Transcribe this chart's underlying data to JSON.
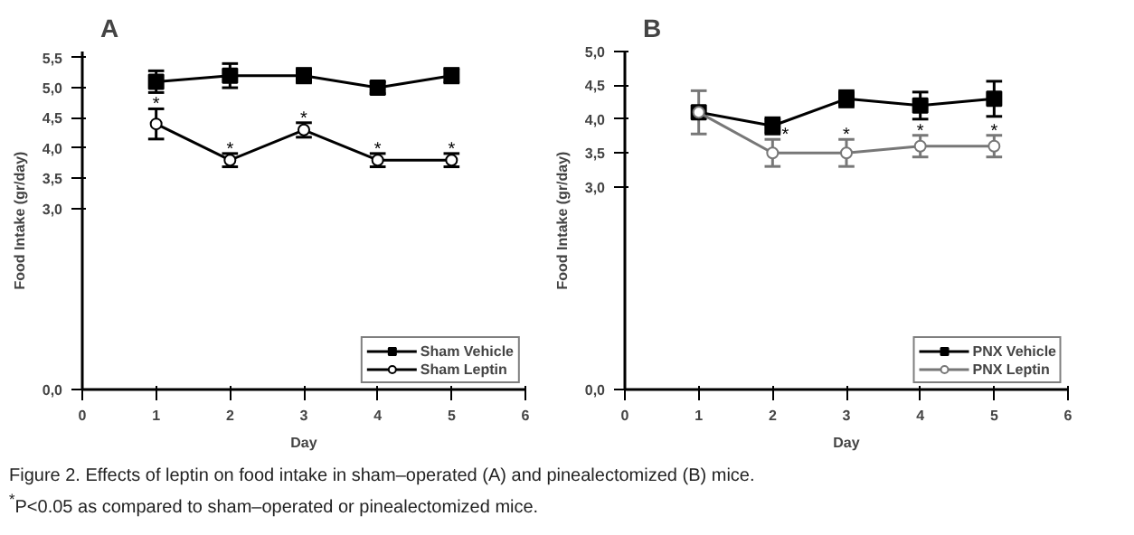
{
  "chart_data": [
    {
      "type": "line",
      "title": "A",
      "xlabel": "Day",
      "ylabel": "Food Intake (gr/day)",
      "x": [
        1,
        2,
        3,
        4,
        5
      ],
      "xlim": [
        0,
        6
      ],
      "xticks": [
        0,
        1,
        2,
        3,
        4,
        5,
        6
      ],
      "ylim": [
        0,
        5.6
      ],
      "yticks": [
        {
          "value": 0,
          "label": "0,0"
        },
        {
          "value": 3,
          "label": "3,0"
        },
        {
          "value": 3.5,
          "label": "3,5"
        },
        {
          "value": 4,
          "label": "4,0"
        },
        {
          "value": 4.5,
          "label": "4,5"
        },
        {
          "value": 5,
          "label": "5,0"
        },
        {
          "value": 5.5,
          "label": "5,5"
        }
      ],
      "legend": "bottom right",
      "grid": false,
      "series": [
        {
          "name": "Sham Vehicle",
          "color": "#000000",
          "marker": "square",
          "values": [
            5.1,
            5.2,
            5.2,
            5.0,
            5.2
          ],
          "errors": [
            0.18,
            0.2,
            0.12,
            0.1,
            0.12
          ]
        },
        {
          "name": "Sham Leptin",
          "color": "#000000",
          "marker": "circle",
          "values": [
            4.4,
            3.8,
            4.3,
            3.8,
            3.8
          ],
          "errors": [
            0.25,
            0.11,
            0.12,
            0.11,
            0.11
          ]
        }
      ],
      "annotations": [
        {
          "text": "*",
          "x": 1,
          "y": 4.65
        },
        {
          "text": "*",
          "x": 2,
          "y": 3.91
        },
        {
          "text": "*",
          "x": 3,
          "y": 4.42
        },
        {
          "text": "*",
          "x": 4,
          "y": 3.91
        },
        {
          "text": "*",
          "x": 5,
          "y": 3.91
        },
        "Figure 2. Effects of leptin on food intake in sham–operated (A) and pinealectomized (B) mice.",
        "$^{*}$P<0.05 as compared to sham–operated or pinealectomized mice."
      ]
    },
    {
      "type": "line",
      "title": "B",
      "xlabel": "Day",
      "ylabel": "Food Intake (gr/day)",
      "x": [
        1,
        2,
        3,
        4,
        5
      ],
      "xlim": [
        0,
        6
      ],
      "xticks": [
        0,
        1,
        2,
        3,
        4,
        5,
        6
      ],
      "ylim": [
        0,
        5.0
      ],
      "yticks": [
        {
          "value": 0,
          "label": "0,0"
        },
        {
          "value": 3,
          "label": "3,0"
        },
        {
          "value": 3.5,
          "label": "3,5"
        },
        {
          "value": 4,
          "label": "4,0"
        },
        {
          "value": 4.5,
          "label": "4,5"
        },
        {
          "value": 5,
          "label": "5,0"
        }
      ],
      "legend": "bottom right",
      "grid": false,
      "series": [
        {
          "name": "PNX Vehicle",
          "color": "#000000",
          "marker": "square",
          "values": [
            4.1,
            3.9,
            4.3,
            4.2,
            4.3
          ],
          "errors": [
            0.32,
            0.12,
            0.12,
            0.2,
            0.26
          ]
        },
        {
          "name": "PNX Leptin",
          "color": "#777777",
          "marker": "circle",
          "values": [
            4.1,
            3.5,
            3.5,
            3.6,
            3.6
          ],
          "errors": [
            0.32,
            0.2,
            0.2,
            0.16,
            0.16
          ]
        }
      ],
      "annotations": [
        {
          "text": "*",
          "x": 2,
          "y": 3.7
        },
        {
          "text": "*",
          "x": 3,
          "y": 3.7
        },
        {
          "text": "*",
          "x": 4,
          "y": 3.76
        },
        {
          "text": "*",
          "x": 5,
          "y": 3.76
        }
      ]
    }
  ]
}
